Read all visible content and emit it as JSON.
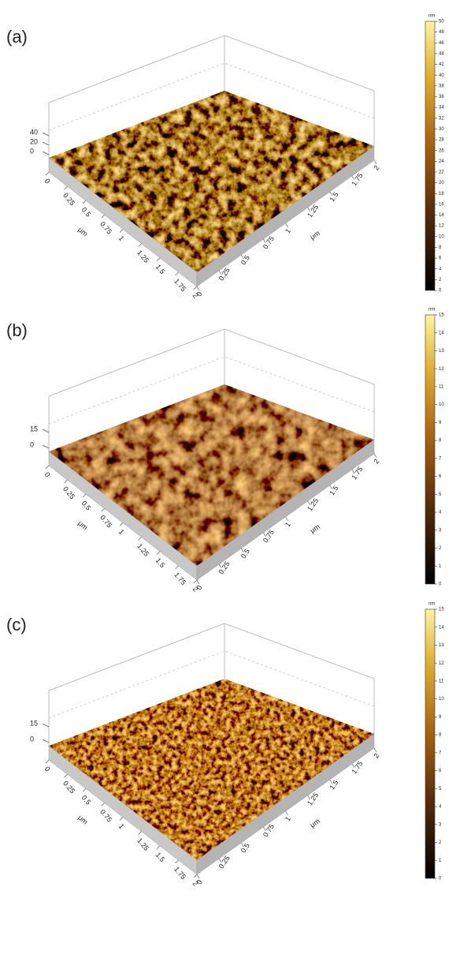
{
  "panels": [
    {
      "label": "(a)",
      "z_ticks": [
        40,
        20,
        0
      ],
      "x_ticks": [
        0,
        0.25,
        0.5,
        0.75,
        1,
        1.25,
        1.5,
        1.75,
        2
      ],
      "y_ticks": [
        0,
        0.25,
        0.5,
        0.75,
        1,
        1.25,
        1.5,
        1.75,
        2
      ],
      "x_unit": "μm",
      "y_unit": "μm",
      "colorbar": {
        "unit": "nm",
        "ticks": [
          0,
          2,
          4,
          6,
          8,
          10,
          12,
          14,
          16,
          18,
          20,
          22,
          24,
          26,
          28,
          30,
          32,
          34,
          36,
          38,
          40,
          42,
          44,
          46,
          48,
          50
        ]
      }
    },
    {
      "label": "(b)",
      "z_ticks": [
        15,
        0
      ],
      "x_ticks": [
        0,
        0.25,
        0.5,
        0.75,
        1,
        1.25,
        1.5,
        1.75,
        2
      ],
      "y_ticks": [
        0,
        0.25,
        0.5,
        0.75,
        1,
        1.25,
        1.5,
        1.75,
        2
      ],
      "x_unit": "μm",
      "y_unit": "μm",
      "colorbar": {
        "unit": "nm",
        "ticks": [
          0,
          1,
          2,
          3,
          4,
          5,
          6,
          7,
          8,
          9,
          10,
          11,
          12,
          13,
          14,
          15
        ]
      }
    },
    {
      "label": "(c)",
      "z_ticks": [
        15,
        0
      ],
      "x_ticks": [
        0,
        0.25,
        0.5,
        0.75,
        1,
        1.25,
        1.5,
        1.75,
        2
      ],
      "y_ticks": [
        0,
        0.25,
        0.5,
        0.75,
        1,
        1.25,
        1.5,
        1.75,
        2
      ],
      "x_unit": "μm",
      "y_unit": "μm",
      "colorbar": {
        "unit": "nm",
        "ticks": [
          0,
          1,
          2,
          3,
          4,
          5,
          6,
          7,
          8,
          9,
          10,
          11,
          12,
          13,
          14,
          15
        ]
      }
    }
  ]
}
